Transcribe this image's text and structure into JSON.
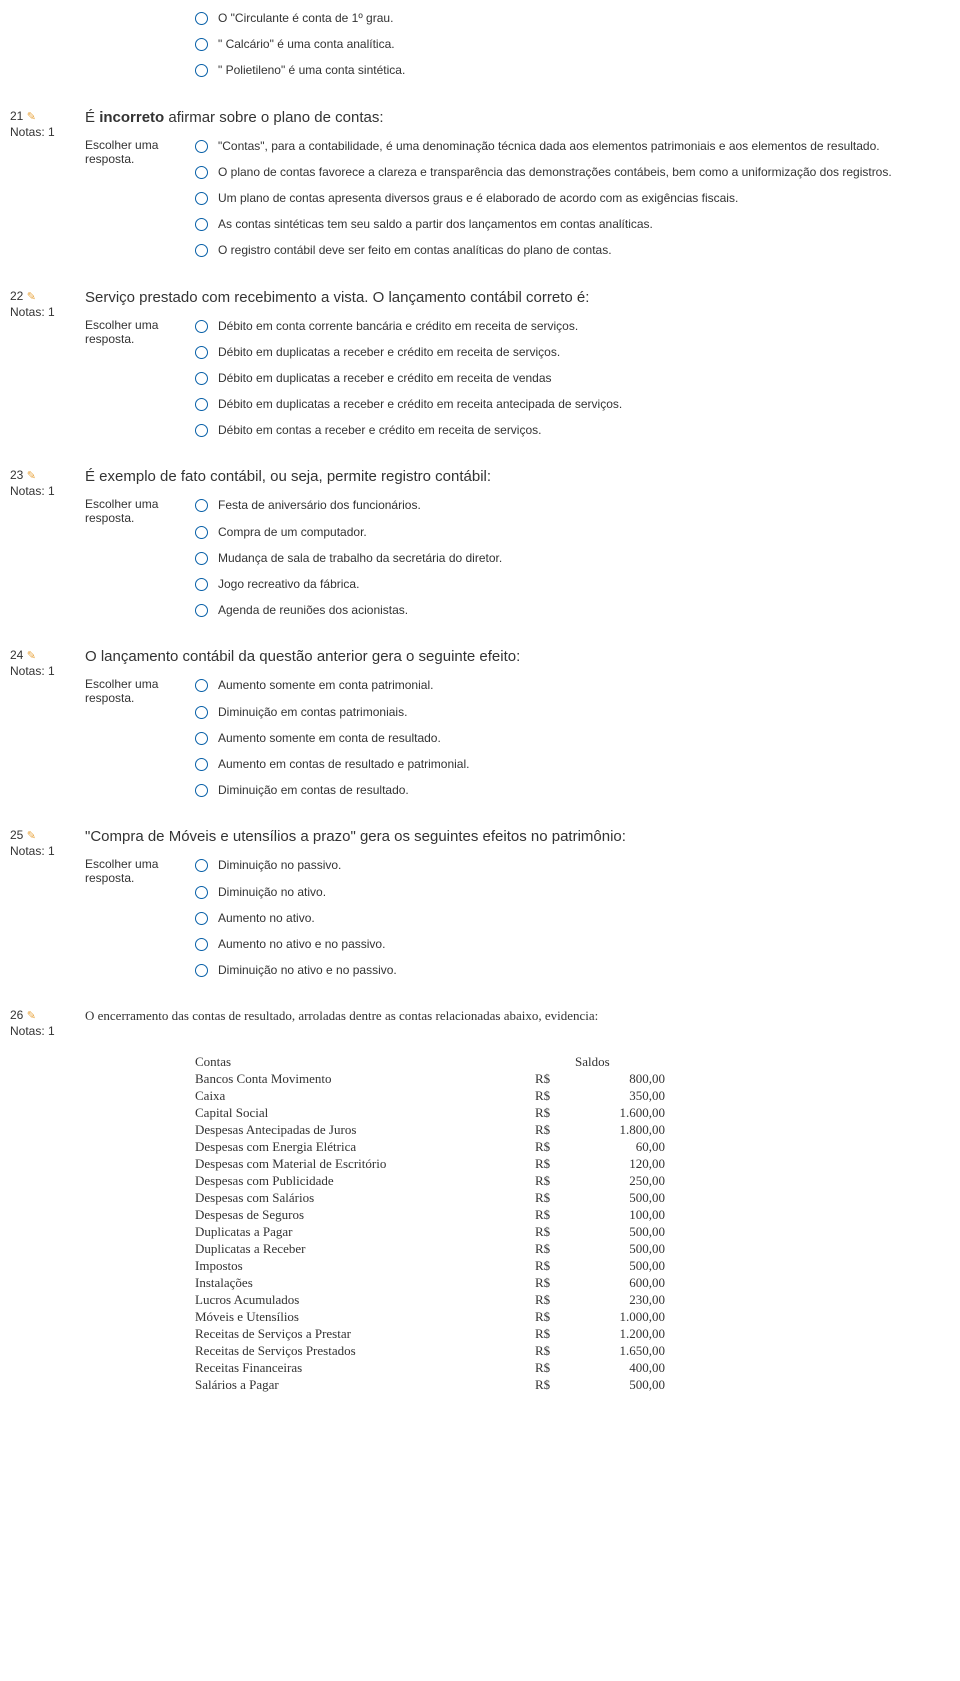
{
  "notas_label": "Notas: 1",
  "prompt_label": "Escolher uma resposta.",
  "orphan_options": [
    "O \"Circulante é conta de 1º grau.",
    "\" Calcário\" é uma conta analítica.",
    "\" Polietileno\" é uma conta sintética."
  ],
  "questions": [
    {
      "num": "21",
      "title_prefix": "É ",
      "title_bold": "incorreto",
      "title_suffix": " afirmar sobre o plano de contas:",
      "options": [
        "\"Contas\", para a contabilidade, é uma denominação técnica dada aos elementos patrimoniais e aos elementos de resultado.",
        "O plano de contas favorece a clareza e transparência das demonstrações contábeis, bem como a uniformização dos registros.",
        "Um plano de contas apresenta diversos graus e é elaborado de acordo com as exigências fiscais.",
        "As contas sintéticas tem seu saldo a partir dos lançamentos em contas analíticas.",
        "O registro contábil deve ser feito em contas analíticas do plano de contas."
      ]
    },
    {
      "num": "22",
      "title": "Serviço prestado com recebimento a vista. O lançamento contábil correto é:",
      "options": [
        "Débito em conta corrente bancária e crédito em receita de serviços.",
        "Débito em duplicatas a receber e crédito em receita de serviços.",
        "Débito em duplicatas a receber e crédito em receita de vendas",
        "Débito em duplicatas a receber e crédito em receita antecipada de serviços.",
        "Débito em contas a receber e crédito em receita de serviços."
      ]
    },
    {
      "num": "23",
      "title": "É exemplo de fato contábil, ou seja, permite registro contábil:",
      "options": [
        "Festa de aniversário dos funcionários.",
        "Compra de um computador.",
        "Mudança de sala de trabalho da secretária do diretor.",
        "Jogo recreativo da fábrica.",
        "Agenda de reuniões dos acionistas."
      ]
    },
    {
      "num": "24",
      "title": "O lançamento contábil da questão anterior gera o seguinte efeito:",
      "options": [
        "Aumento somente em conta patrimonial.",
        "Diminuição em contas patrimoniais.",
        "Aumento somente em conta de resultado.",
        "Aumento em contas de resultado e patrimonial.",
        "Diminuição em contas de resultado."
      ]
    },
    {
      "num": "25",
      "title": "\"Compra de Móveis e utensílios a prazo\" gera os seguintes efeitos no patrimônio:",
      "options": [
        "Diminuição no passivo.",
        "Diminuição no ativo.",
        "Aumento no ativo.",
        "Aumento no ativo e no passivo.",
        "Diminuição no ativo e no passivo."
      ]
    }
  ],
  "q26": {
    "num": "26",
    "title": "O encerramento das contas de resultado, arroladas dentre as contas relacionadas abaixo, evidencia:",
    "header_contas": "Contas",
    "header_saldos": "Saldos",
    "currency": "R$",
    "rows": [
      {
        "name": "Bancos Conta Movimento",
        "value": "800,00"
      },
      {
        "name": "Caixa",
        "value": "350,00"
      },
      {
        "name": "Capital Social",
        "value": "1.600,00"
      },
      {
        "name": "Despesas Antecipadas de Juros",
        "value": "1.800,00"
      },
      {
        "name": "Despesas com Energia Elétrica",
        "value": "60,00"
      },
      {
        "name": "Despesas com Material de Escritório",
        "value": "120,00"
      },
      {
        "name": "Despesas com Publicidade",
        "value": "250,00"
      },
      {
        "name": "Despesas com Salários",
        "value": "500,00"
      },
      {
        "name": "Despesas de Seguros",
        "value": "100,00"
      },
      {
        "name": "Duplicatas a Pagar",
        "value": "500,00"
      },
      {
        "name": "Duplicatas a Receber",
        "value": "500,00"
      },
      {
        "name": "Impostos",
        "value": "500,00"
      },
      {
        "name": "Instalações",
        "value": "600,00"
      },
      {
        "name": "Lucros Acumulados",
        "value": "230,00"
      },
      {
        "name": "Móveis e Utensílios",
        "value": "1.000,00"
      },
      {
        "name": "Receitas de Serviços a Prestar",
        "value": "1.200,00"
      },
      {
        "name": "Receitas de Serviços Prestados",
        "value": "1.650,00"
      },
      {
        "name": "Receitas Financeiras",
        "value": "400,00"
      },
      {
        "name": "Salários a Pagar",
        "value": "500,00"
      }
    ]
  }
}
